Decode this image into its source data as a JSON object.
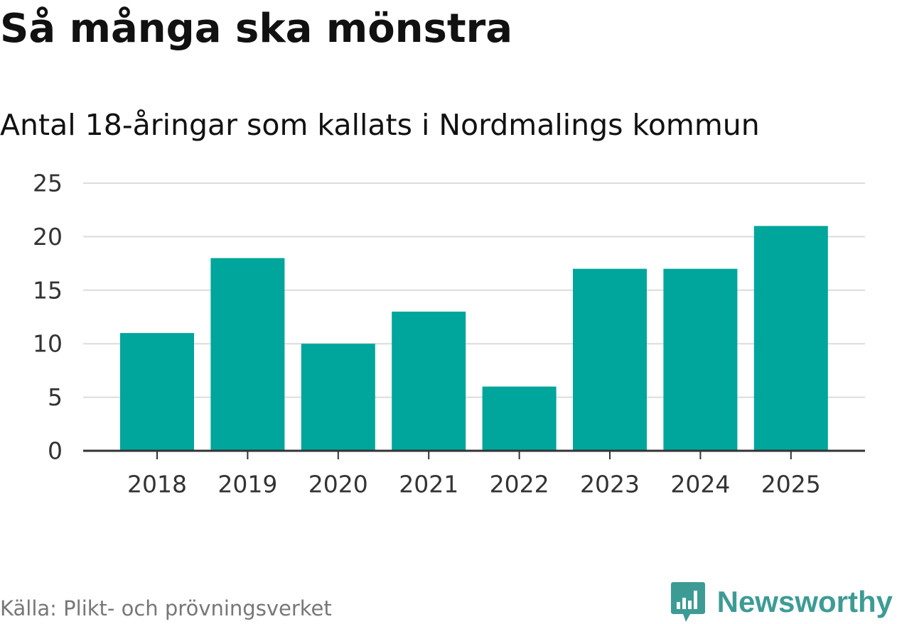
{
  "title": "Så många ska mönstra",
  "subtitle": "Antal 18-åringar som kallats i Nordmalings kommun",
  "source": "Källa: Plikt- och prövningsverket",
  "brand": {
    "name": "Newsworthy",
    "icon": "bar-chart-speech-bubble-icon",
    "color": "#3d9b95"
  },
  "chart_data": {
    "type": "bar",
    "categories": [
      "2018",
      "2019",
      "2020",
      "2021",
      "2022",
      "2023",
      "2024",
      "2025"
    ],
    "values": [
      11,
      18,
      10,
      13,
      6,
      17,
      17,
      21
    ],
    "ylim": [
      0,
      25
    ],
    "yticks": [
      0,
      5,
      10,
      15,
      20,
      25
    ],
    "grid": true,
    "bar_color": "#00a59b",
    "grid_color": "#dcdcdc",
    "axis_color": "#333333"
  }
}
